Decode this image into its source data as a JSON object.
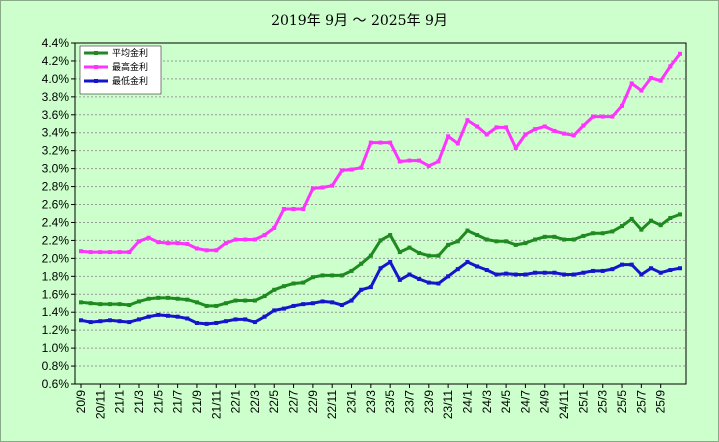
{
  "chart_data": {
    "type": "line",
    "title": "2019年 9月 ～ 2025年 9月",
    "xlabel": "",
    "ylabel": "",
    "ylim": [
      0.6,
      4.4
    ],
    "yticks": [
      "0.6%",
      "0.8%",
      "1.0%",
      "1.2%",
      "1.4%",
      "1.6%",
      "1.8%",
      "2.0%",
      "2.2%",
      "2.4%",
      "2.6%",
      "2.8%",
      "3.0%",
      "3.2%",
      "3.4%",
      "3.6%",
      "3.8%",
      "4.0%",
      "4.2%",
      "4.4%"
    ],
    "x_tick_labels": [
      "20/9",
      "20/11",
      "21/1",
      "21/3",
      "21/5",
      "21/7",
      "21/9",
      "21/11",
      "22/1",
      "22/3",
      "22/5",
      "22/7",
      "22/9",
      "22/11",
      "23/1",
      "23/3",
      "23/5",
      "23/7",
      "23/9",
      "23/11",
      "24/1",
      "24/3",
      "24/5",
      "24/7",
      "24/9",
      "24/11",
      "25/1",
      "25/3",
      "25/5",
      "25/7",
      "25/9"
    ],
    "grid": true,
    "legend_position": "top-left",
    "series": [
      {
        "name": "平均金利",
        "color": "#1f8a1f",
        "values": [
          1.51,
          1.5,
          1.49,
          1.49,
          1.49,
          1.48,
          1.52,
          1.55,
          1.56,
          1.56,
          1.55,
          1.54,
          1.51,
          1.47,
          1.47,
          1.5,
          1.53,
          1.53,
          1.53,
          1.58,
          1.65,
          1.69,
          1.72,
          1.73,
          1.79,
          1.81,
          1.81,
          1.81,
          1.86,
          1.94,
          2.03,
          2.2,
          2.26,
          2.07,
          2.12,
          2.06,
          2.03,
          2.03,
          2.15,
          2.19,
          2.31,
          2.26,
          2.21,
          2.19,
          2.19,
          2.15,
          2.17,
          2.21,
          2.24,
          2.24,
          2.21,
          2.21,
          2.25,
          2.28,
          2.28,
          2.3,
          2.36,
          2.44,
          2.32,
          2.42,
          2.37,
          2.45,
          2.49
        ]
      },
      {
        "name": "最高金利",
        "color": "#ff33ff",
        "values": [
          2.08,
          2.07,
          2.07,
          2.07,
          2.07,
          2.07,
          2.19,
          2.23,
          2.18,
          2.17,
          2.17,
          2.16,
          2.11,
          2.09,
          2.09,
          2.17,
          2.21,
          2.21,
          2.21,
          2.26,
          2.34,
          2.55,
          2.55,
          2.55,
          2.78,
          2.79,
          2.81,
          2.98,
          2.99,
          3.01,
          3.29,
          3.29,
          3.29,
          3.08,
          3.09,
          3.09,
          3.03,
          3.08,
          3.36,
          3.28,
          3.54,
          3.47,
          3.38,
          3.46,
          3.46,
          3.23,
          3.38,
          3.44,
          3.47,
          3.42,
          3.39,
          3.37,
          3.48,
          3.58,
          3.58,
          3.58,
          3.7,
          3.95,
          3.87,
          4.01,
          3.98,
          4.14,
          4.28
        ]
      },
      {
        "name": "最低金利",
        "color": "#1515cc",
        "values": [
          1.31,
          1.29,
          1.3,
          1.31,
          1.3,
          1.29,
          1.32,
          1.35,
          1.37,
          1.36,
          1.35,
          1.33,
          1.28,
          1.27,
          1.28,
          1.3,
          1.32,
          1.32,
          1.29,
          1.35,
          1.42,
          1.44,
          1.47,
          1.49,
          1.5,
          1.52,
          1.51,
          1.48,
          1.53,
          1.65,
          1.68,
          1.89,
          1.96,
          1.76,
          1.82,
          1.77,
          1.73,
          1.72,
          1.8,
          1.88,
          1.96,
          1.91,
          1.87,
          1.82,
          1.83,
          1.82,
          1.82,
          1.84,
          1.84,
          1.84,
          1.82,
          1.82,
          1.84,
          1.86,
          1.86,
          1.88,
          1.93,
          1.93,
          1.82,
          1.89,
          1.84,
          1.87,
          1.89
        ]
      }
    ]
  }
}
